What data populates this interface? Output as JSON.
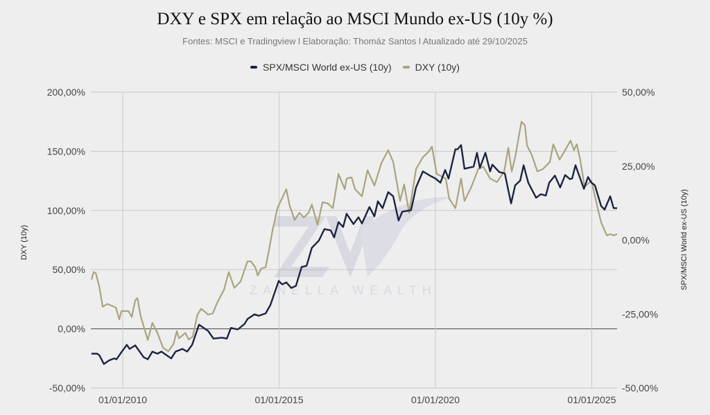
{
  "chart_data": {
    "type": "line",
    "title": "DXY e SPX em relação ao MSCI Mundo ex-US (10y %)",
    "subtitle": "Fontes: MSCI e Tradingview l Elaboração: Thomáz Santos l Atualizado até 29/10/2025",
    "watermark": "ZANELLA WEALTH",
    "legend_position": "top-center",
    "grid": true,
    "xlim": [
      2008.98,
      2025.81
    ],
    "x_ticks": [
      {
        "x": 2010,
        "label": "01/01/2010"
      },
      {
        "x": 2015,
        "label": "01/01/2015"
      },
      {
        "x": 2020,
        "label": "01/01/2020"
      },
      {
        "x": 2025,
        "label": "01/01/2025"
      }
    ],
    "y_left": {
      "label": "DXY (10y)",
      "lim": [
        -50,
        200
      ],
      "ticks": [
        {
          "v": 200,
          "label": "200,00%"
        },
        {
          "v": 150,
          "label": "150,00%"
        },
        {
          "v": 100,
          "label": "100,00%"
        },
        {
          "v": 50,
          "label": "50,00%"
        },
        {
          "v": 0,
          "label": "0,00%"
        },
        {
          "v": -50,
          "label": "-50,00%"
        }
      ]
    },
    "y_right": {
      "label": "SPX/MSCI World ex-US (10y)",
      "lim": [
        -50,
        50
      ],
      "ticks": [
        {
          "v": 50,
          "label": "50,00%"
        },
        {
          "v": 25,
          "label": "25,00%"
        },
        {
          "v": 0,
          "label": "0,00%"
        },
        {
          "v": -25,
          "label": "-25,00%"
        },
        {
          "v": -50,
          "label": "-50,00%"
        }
      ]
    },
    "series": [
      {
        "name": "SPX/MSCI World ex-US (10y)",
        "axis": "right",
        "color": "#1b2340",
        "points": [
          [
            2009.0,
            -38.4
          ],
          [
            2009.18,
            -38.4
          ],
          [
            2009.25,
            -38.9
          ],
          [
            2009.4,
            -41.9
          ],
          [
            2009.56,
            -40.7
          ],
          [
            2009.73,
            -40
          ],
          [
            2009.8,
            -40.3
          ],
          [
            2009.96,
            -37.9
          ],
          [
            2010.13,
            -35.4
          ],
          [
            2010.22,
            -36.8
          ],
          [
            2010.4,
            -35.6
          ],
          [
            2010.67,
            -39.6
          ],
          [
            2010.8,
            -40.3
          ],
          [
            2010.95,
            -37.7
          ],
          [
            2011.11,
            -38.4
          ],
          [
            2011.24,
            -37.7
          ],
          [
            2011.4,
            -38.9
          ],
          [
            2011.55,
            -40
          ],
          [
            2011.69,
            -37.7
          ],
          [
            2011.91,
            -36.8
          ],
          [
            2012.06,
            -37.7
          ],
          [
            2012.22,
            -35.4
          ],
          [
            2012.44,
            -28.6
          ],
          [
            2012.73,
            -30.7
          ],
          [
            2012.9,
            -33.3
          ],
          [
            2013.17,
            -33
          ],
          [
            2013.33,
            -33.3
          ],
          [
            2013.46,
            -29.7
          ],
          [
            2013.68,
            -30.2
          ],
          [
            2013.9,
            -28.3
          ],
          [
            2013.99,
            -26.7
          ],
          [
            2014.21,
            -25.1
          ],
          [
            2014.35,
            -25.6
          ],
          [
            2014.57,
            -24.8
          ],
          [
            2014.72,
            -22
          ],
          [
            2014.99,
            -13.8
          ],
          [
            2015.1,
            -15
          ],
          [
            2015.23,
            -14.3
          ],
          [
            2015.39,
            -16.2
          ],
          [
            2015.54,
            -15.5
          ],
          [
            2015.72,
            -9.1
          ],
          [
            2015.88,
            -8.7
          ],
          [
            2016.05,
            -2.6
          ],
          [
            2016.27,
            -0.2
          ],
          [
            2016.45,
            3.7
          ],
          [
            2016.65,
            3.3
          ],
          [
            2016.76,
            0.9
          ],
          [
            2016.9,
            6.1
          ],
          [
            2017.05,
            4.4
          ],
          [
            2017.16,
            8.9
          ],
          [
            2017.38,
            5.4
          ],
          [
            2017.54,
            7.7
          ],
          [
            2017.65,
            5.6
          ],
          [
            2017.89,
            11.2
          ],
          [
            2018.05,
            8
          ],
          [
            2018.16,
            13.1
          ],
          [
            2018.31,
            10.8
          ],
          [
            2018.49,
            16.2
          ],
          [
            2018.65,
            14.8
          ],
          [
            2018.82,
            6.6
          ],
          [
            2018.94,
            9.6
          ],
          [
            2019.16,
            10
          ],
          [
            2019.22,
            10.1
          ],
          [
            2019.38,
            17.8
          ],
          [
            2019.6,
            23.2
          ],
          [
            2019.82,
            21.8
          ],
          [
            2020.0,
            20.8
          ],
          [
            2020.16,
            19.4
          ],
          [
            2020.31,
            23.7
          ],
          [
            2020.42,
            20.8
          ],
          [
            2020.64,
            30.7
          ],
          [
            2020.71,
            30.7
          ],
          [
            2020.82,
            32.1
          ],
          [
            2020.93,
            24.1
          ],
          [
            2021.22,
            24.8
          ],
          [
            2021.33,
            29.5
          ],
          [
            2021.42,
            24.4
          ],
          [
            2021.6,
            29.5
          ],
          [
            2021.75,
            23.2
          ],
          [
            2021.82,
            25.5
          ],
          [
            2022.04,
            23
          ],
          [
            2022.22,
            22.5
          ],
          [
            2022.42,
            12.4
          ],
          [
            2022.55,
            18.5
          ],
          [
            2022.71,
            20.1
          ],
          [
            2022.82,
            25.3
          ],
          [
            2022.97,
            19.4
          ],
          [
            2023.22,
            14.3
          ],
          [
            2023.37,
            15.5
          ],
          [
            2023.53,
            15
          ],
          [
            2023.64,
            19.4
          ],
          [
            2023.82,
            21.8
          ],
          [
            2023.99,
            17.8
          ],
          [
            2024.15,
            22
          ],
          [
            2024.3,
            20.6
          ],
          [
            2024.37,
            20.8
          ],
          [
            2024.48,
            25.3
          ],
          [
            2024.75,
            17.3
          ],
          [
            2024.88,
            21.3
          ],
          [
            2024.99,
            19.4
          ],
          [
            2025.1,
            18.5
          ],
          [
            2025.3,
            11.5
          ],
          [
            2025.41,
            10.3
          ],
          [
            2025.59,
            14.8
          ],
          [
            2025.7,
            10.8
          ],
          [
            2025.81,
            10.8
          ]
        ]
      },
      {
        "name": "DXY (10y)",
        "axis": "left",
        "color": "#a9a37f",
        "points": [
          [
            2009.0,
            41.6
          ],
          [
            2009.07,
            48
          ],
          [
            2009.14,
            47
          ],
          [
            2009.25,
            35.7
          ],
          [
            2009.36,
            18.7
          ],
          [
            2009.51,
            21
          ],
          [
            2009.78,
            18
          ],
          [
            2009.89,
            8
          ],
          [
            2009.96,
            15
          ],
          [
            2010.18,
            15
          ],
          [
            2010.29,
            10
          ],
          [
            2010.4,
            24
          ],
          [
            2010.47,
            26
          ],
          [
            2010.58,
            10
          ],
          [
            2010.8,
            -9.4
          ],
          [
            2010.95,
            5
          ],
          [
            2011.11,
            -3.5
          ],
          [
            2011.29,
            -16
          ],
          [
            2011.46,
            -19
          ],
          [
            2011.62,
            -13
          ],
          [
            2011.73,
            -2
          ],
          [
            2011.8,
            -8
          ],
          [
            2012.0,
            -3.5
          ],
          [
            2012.11,
            -9
          ],
          [
            2012.24,
            -6.5
          ],
          [
            2012.39,
            12
          ],
          [
            2012.51,
            17
          ],
          [
            2012.73,
            12
          ],
          [
            2012.88,
            13
          ],
          [
            2013.02,
            22
          ],
          [
            2013.24,
            33
          ],
          [
            2013.39,
            48
          ],
          [
            2013.57,
            34.6
          ],
          [
            2013.77,
            40
          ],
          [
            2013.99,
            57
          ],
          [
            2014.1,
            57
          ],
          [
            2014.24,
            52
          ],
          [
            2014.32,
            45
          ],
          [
            2014.43,
            51
          ],
          [
            2014.57,
            52
          ],
          [
            2014.68,
            67
          ],
          [
            2014.79,
            83
          ],
          [
            2014.95,
            102
          ],
          [
            2015.23,
            118
          ],
          [
            2015.34,
            104
          ],
          [
            2015.5,
            92
          ],
          [
            2015.65,
            98
          ],
          [
            2015.79,
            94
          ],
          [
            2015.94,
            98
          ],
          [
            2016.05,
            105
          ],
          [
            2016.23,
            88
          ],
          [
            2016.39,
            107
          ],
          [
            2016.56,
            106
          ],
          [
            2016.72,
            102
          ],
          [
            2016.9,
            131
          ],
          [
            2017.1,
            118
          ],
          [
            2017.16,
            127
          ],
          [
            2017.32,
            128
          ],
          [
            2017.43,
            118
          ],
          [
            2017.65,
            112
          ],
          [
            2017.83,
            134
          ],
          [
            2018.05,
            121
          ],
          [
            2018.27,
            140
          ],
          [
            2018.49,
            151
          ],
          [
            2018.65,
            141
          ],
          [
            2018.87,
            108
          ],
          [
            2019.0,
            122
          ],
          [
            2019.16,
            98
          ],
          [
            2019.38,
            135
          ],
          [
            2019.6,
            145
          ],
          [
            2019.76,
            149
          ],
          [
            2019.89,
            154
          ],
          [
            2020.04,
            131
          ],
          [
            2020.33,
            127
          ],
          [
            2020.44,
            110
          ],
          [
            2020.64,
            102
          ],
          [
            2020.82,
            127
          ],
          [
            2020.93,
            108
          ],
          [
            2021.15,
            120
          ],
          [
            2021.37,
            135
          ],
          [
            2021.53,
            137
          ],
          [
            2021.75,
            127
          ],
          [
            2021.97,
            124
          ],
          [
            2022.2,
            133
          ],
          [
            2022.33,
            153
          ],
          [
            2022.44,
            133
          ],
          [
            2022.55,
            145
          ],
          [
            2022.75,
            175
          ],
          [
            2022.86,
            172
          ],
          [
            2022.93,
            155
          ],
          [
            2023.08,
            147
          ],
          [
            2023.26,
            133
          ],
          [
            2023.44,
            135
          ],
          [
            2023.66,
            141
          ],
          [
            2023.77,
            156
          ],
          [
            2023.97,
            143
          ],
          [
            2024.15,
            151
          ],
          [
            2024.32,
            159
          ],
          [
            2024.43,
            151
          ],
          [
            2024.52,
            156
          ],
          [
            2024.63,
            143
          ],
          [
            2024.77,
            120
          ],
          [
            2024.99,
            125
          ],
          [
            2025.19,
            102
          ],
          [
            2025.3,
            90
          ],
          [
            2025.48,
            79
          ],
          [
            2025.59,
            80
          ],
          [
            2025.7,
            79
          ],
          [
            2025.81,
            80
          ]
        ]
      }
    ]
  }
}
